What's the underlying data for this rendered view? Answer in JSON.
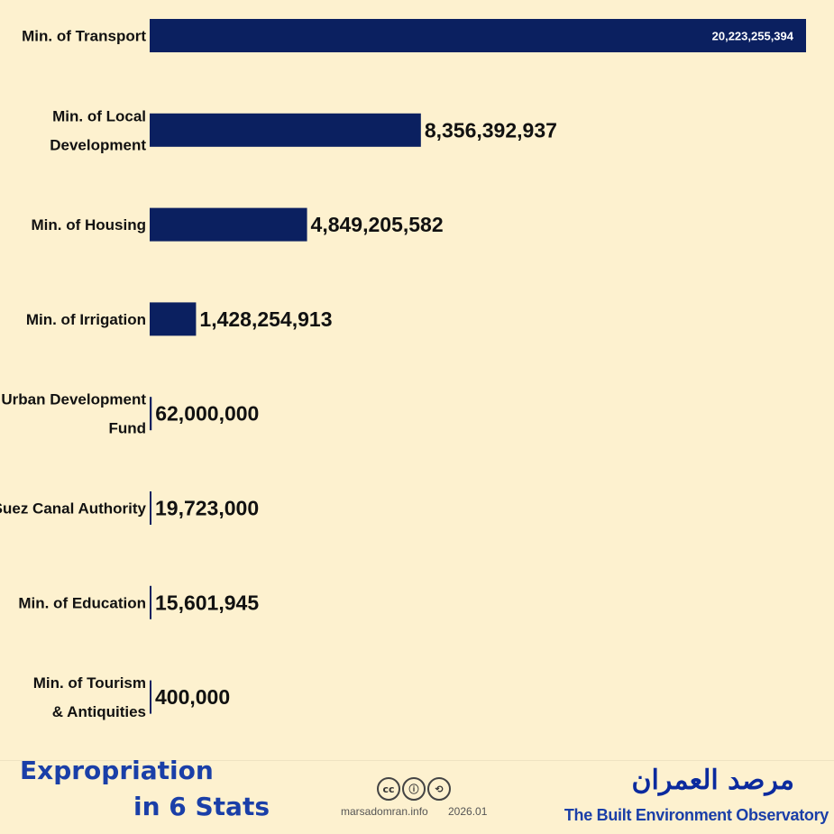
{
  "chart_data": {
    "type": "bar",
    "orientation": "horizontal",
    "categories": [
      [
        "Min. of Transport"
      ],
      [
        "Min. of Local",
        "Development"
      ],
      [
        "Min. of Housing"
      ],
      [
        "Min. of Irrigation"
      ],
      [
        "Urban Development",
        "Fund"
      ],
      [
        "Suez Canal Authority"
      ],
      [
        "Min. of Education"
      ],
      [
        "Min. of Tourism",
        "& Antiquities"
      ]
    ],
    "values": [
      20223255394,
      8356392937,
      4849205582,
      1428254913,
      62000000,
      19723000,
      15601945,
      400000
    ],
    "value_labels": [
      "20,223,255,394",
      "8,356,392,937",
      "4,849,205,582",
      "1,428,254,913",
      "62,000,000",
      "19,723,000",
      "15,601,945",
      "400,000"
    ],
    "bar_color": "#0b2060",
    "background_color": "#fdf1cf"
  },
  "footer": {
    "title_line1": "Expropriation",
    "title_line2": "in 6 Stats",
    "license_icons": [
      "cc",
      "by",
      "sa"
    ],
    "license_glyphs": [
      "cc",
      "ⓘ",
      "⟲"
    ],
    "site": "marsadomran.info",
    "date": "2026.01",
    "brand_arabic": "مرصد العمران",
    "brand_english": "The Built Environment Observatory",
    "title_color": "#1a3fa8"
  }
}
